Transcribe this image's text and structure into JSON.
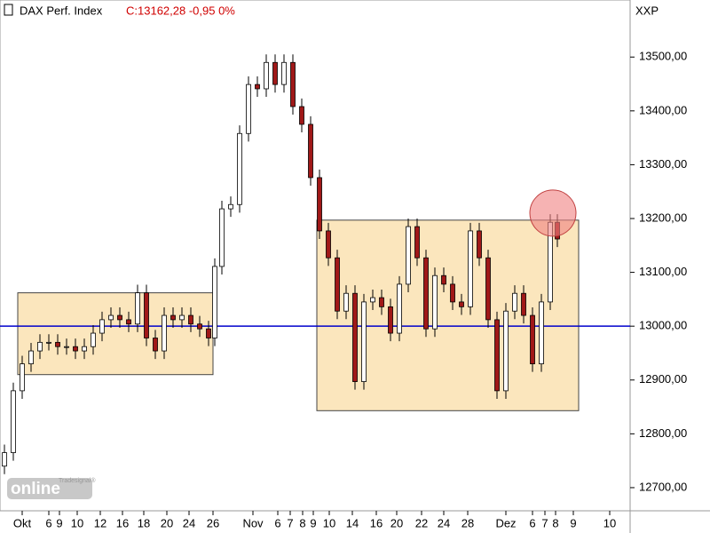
{
  "chart_data": {
    "type": "candlestick",
    "title": "DAX Perf. Index",
    "subtitle": "C:13162,28 -0,95 0%",
    "axis_label": "XXP",
    "logo": {
      "text": "online",
      "brand": "Tradesignal®"
    },
    "ylim": [
      12657,
      13606
    ],
    "xlim": [
      0,
      142
    ],
    "yticks": [
      {
        "value": 12700,
        "label": "12700,00"
      },
      {
        "value": 12800,
        "label": "12800,00"
      },
      {
        "value": 12900,
        "label": "12900,00"
      },
      {
        "value": 13000,
        "label": "13000,00"
      },
      {
        "value": 13100,
        "label": "13100,00"
      },
      {
        "value": 13200,
        "label": "13200,00"
      },
      {
        "value": 13300,
        "label": "13300,00"
      },
      {
        "value": 13400,
        "label": "13400,00"
      },
      {
        "value": 13500,
        "label": "13500,00"
      }
    ],
    "xticks": [
      {
        "value": 5,
        "label": "Okt"
      },
      {
        "value": 11,
        "label": "6"
      },
      {
        "value": 13.4,
        "label": "9"
      },
      {
        "value": 17.4,
        "label": "10"
      },
      {
        "value": 22.6,
        "label": "12"
      },
      {
        "value": 27.6,
        "label": "16"
      },
      {
        "value": 32.4,
        "label": "18"
      },
      {
        "value": 37.6,
        "label": "20"
      },
      {
        "value": 42.6,
        "label": "24"
      },
      {
        "value": 48,
        "label": "26"
      },
      {
        "value": 57,
        "label": "Nov"
      },
      {
        "value": 62.6,
        "label": "6"
      },
      {
        "value": 65.4,
        "label": "7"
      },
      {
        "value": 68.2,
        "label": "8"
      },
      {
        "value": 70.6,
        "label": "9"
      },
      {
        "value": 74.2,
        "label": "10"
      },
      {
        "value": 79.4,
        "label": "14"
      },
      {
        "value": 84.8,
        "label": "16"
      },
      {
        "value": 89.4,
        "label": "20"
      },
      {
        "value": 95,
        "label": "22"
      },
      {
        "value": 100,
        "label": "24"
      },
      {
        "value": 105.4,
        "label": "28"
      },
      {
        "value": 114,
        "label": "Dez"
      },
      {
        "value": 120,
        "label": "6"
      },
      {
        "value": 122.8,
        "label": "7"
      },
      {
        "value": 125.2,
        "label": "8"
      },
      {
        "value": 129.2,
        "label": "9"
      },
      {
        "value": 137.4,
        "label": "10"
      }
    ],
    "x": [
      1,
      3,
      5,
      7,
      9,
      11,
      13,
      15,
      17,
      19,
      21,
      23,
      25,
      27,
      29,
      31,
      33,
      35,
      37,
      39,
      41,
      43,
      45,
      47,
      48.4,
      50,
      52,
      54,
      56,
      58,
      60,
      62,
      64,
      66,
      68,
      70,
      72,
      74,
      76,
      78,
      80,
      82,
      84,
      86,
      88,
      90,
      92,
      94,
      96,
      98,
      100,
      102,
      104,
      106,
      108,
      110,
      112,
      114,
      116,
      118,
      120,
      122,
      124,
      125.6
    ],
    "open": [
      12740,
      12765,
      12880,
      12930,
      12954,
      12970,
      12970,
      12962,
      12962,
      12954,
      12962,
      12987,
      13012,
      13020,
      13012,
      13004,
      13062,
      12978,
      12954,
      13020,
      13012,
      13020,
      13004,
      12995,
      12978,
      13111,
      13218,
      13226,
      13358,
      13449,
      13441,
      13490,
      13449,
      13490,
      13408,
      13375,
      13276,
      13177,
      13127,
      13028,
      13061,
      12897,
      13045,
      13053,
      13036,
      12987,
      13078,
      13185,
      13127,
      12995,
      13094,
      13078,
      13045,
      13036,
      13177,
      13127,
      13012,
      12880,
      13028,
      13061,
      13020,
      12930,
      13045,
      13193
    ],
    "high": [
      12780,
      12895,
      12945,
      12969,
      12985,
      12985,
      12985,
      12977,
      12977,
      12977,
      13002,
      13027,
      13035,
      13035,
      13027,
      13077,
      13077,
      12993,
      13035,
      13035,
      13035,
      13035,
      13019,
      13010,
      13126,
      13233,
      13241,
      13373,
      13464,
      13464,
      13505,
      13505,
      13505,
      13505,
      13423,
      13390,
      13291,
      13192,
      13142,
      13076,
      13076,
      13060,
      13068,
      13068,
      13051,
      13093,
      13200,
      13200,
      13142,
      13109,
      13109,
      13093,
      13060,
      13192,
      13192,
      13142,
      13027,
      13043,
      13076,
      13076,
      13035,
      13060,
      13208,
      13208
    ],
    "low": [
      12725,
      12750,
      12865,
      12915,
      12939,
      12955,
      12947,
      12947,
      12939,
      12939,
      12947,
      12972,
      12997,
      12997,
      12989,
      12989,
      12963,
      12939,
      12939,
      12997,
      12997,
      12989,
      12980,
      12963,
      12963,
      13096,
      13203,
      13211,
      13343,
      13426,
      13426,
      13434,
      13434,
      13393,
      13360,
      13261,
      13162,
      13112,
      13013,
      13013,
      12882,
      12882,
      13030,
      13021,
      12972,
      12972,
      13063,
      13112,
      12980,
      12980,
      13063,
      13030,
      13021,
      13021,
      13112,
      12997,
      12865,
      12865,
      13013,
      13005,
      12915,
      12915,
      13030,
      13147
    ],
    "close": [
      12765,
      12880,
      12930,
      12954,
      12970,
      12970,
      12962,
      12962,
      12954,
      12962,
      12987,
      13012,
      13020,
      13012,
      13004,
      13062,
      12978,
      12954,
      13020,
      13012,
      13020,
      13004,
      12995,
      12978,
      13111,
      13218,
      13226,
      13358,
      13449,
      13441,
      13490,
      13449,
      13490,
      13408,
      13375,
      13276,
      13177,
      13127,
      13028,
      13061,
      12897,
      13045,
      13053,
      13036,
      12987,
      13078,
      13185,
      13127,
      12995,
      13094,
      13078,
      13045,
      13036,
      13177,
      13127,
      13012,
      12880,
      13028,
      13061,
      13020,
      12930,
      13045,
      13193,
      13162
    ],
    "up_color": "#ffffff",
    "down_color": "#a01818",
    "level": {
      "value": 13000,
      "color": "#0000cc"
    },
    "zones": [
      {
        "x": [
          4,
          48
        ],
        "y": [
          12910,
          13062
        ],
        "color": "#fbe6bd"
      },
      {
        "x": [
          71.4,
          130.4
        ],
        "y": [
          12843,
          13197
        ],
        "color": "#fbe6bd"
      }
    ],
    "marker": {
      "x": 124.6,
      "y": 13210,
      "color": "#f08080"
    }
  }
}
